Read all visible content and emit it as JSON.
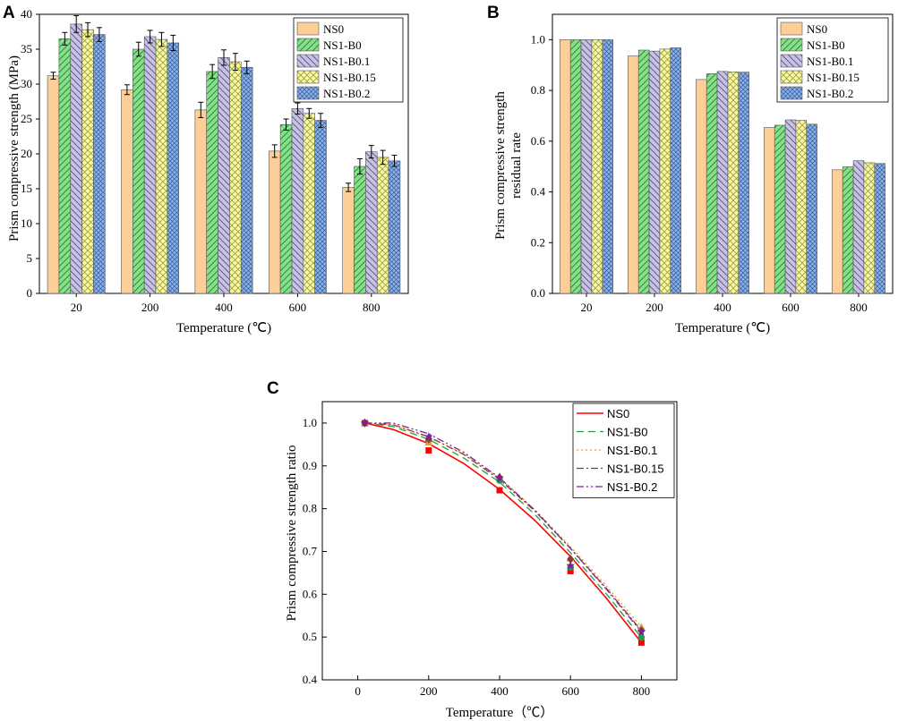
{
  "colors": {
    "NS0": "#fccf98",
    "NS1-B0": "#86e08a",
    "NS1-B0.1": "#c7c2e3",
    "NS1-B0.15": "#fbfba3",
    "NS1-B0.2": "#8fb2e6",
    "line_NS0": "#ff0000",
    "line_NS1-B0": "#1f9e4a",
    "line_NS1-B0.1": "#e3a21a",
    "line_NS1-B0.15": "#8b3a3a",
    "line_NS1-B0.2": "#7a1fa2"
  },
  "chart_data": [
    {
      "panel": "A",
      "type": "bar",
      "xlabel": "Temperature (℃)",
      "ylabel": "Prism compressive strength (MPa)",
      "ylim": [
        0,
        40
      ],
      "yticks": [
        "0",
        "5",
        "10",
        "15",
        "20",
        "25",
        "30",
        "35",
        "40"
      ],
      "categories": [
        "20",
        "200",
        "400",
        "600",
        "800"
      ],
      "legend_position": "top-right",
      "series": [
        {
          "name": "NS0",
          "values": [
            31.2,
            29.2,
            26.3,
            20.4,
            15.2
          ],
          "errors": [
            0.5,
            0.7,
            1.1,
            0.9,
            0.6
          ]
        },
        {
          "name": "NS1-B0",
          "values": [
            36.5,
            35.0,
            31.8,
            24.2,
            18.2
          ],
          "errors": [
            0.9,
            1.0,
            1.0,
            0.8,
            1.1
          ]
        },
        {
          "name": "NS1-B0.1",
          "values": [
            38.6,
            36.8,
            33.8,
            26.5,
            20.3
          ],
          "errors": [
            1.2,
            0.9,
            1.1,
            0.8,
            0.9
          ]
        },
        {
          "name": "NS1-B0.15",
          "values": [
            37.8,
            36.4,
            33.2,
            25.8,
            19.5
          ],
          "errors": [
            1.0,
            1.0,
            1.2,
            0.7,
            1.0
          ]
        },
        {
          "name": "NS1-B0.2",
          "values": [
            37.1,
            35.9,
            32.4,
            24.8,
            19.0
          ],
          "errors": [
            1.0,
            1.1,
            0.9,
            1.0,
            0.8
          ]
        }
      ]
    },
    {
      "panel": "B",
      "type": "bar",
      "xlabel": "Temperature (℃)",
      "ylabel_lines": [
        "Prism compressive strength",
        "residual rate"
      ],
      "ylim": [
        0,
        1.1
      ],
      "yticks": [
        "0.0",
        "0.2",
        "0.4",
        "0.6",
        "0.8",
        "1.0"
      ],
      "categories": [
        "20",
        "200",
        "400",
        "600",
        "800"
      ],
      "legend_position": "top-right",
      "series": [
        {
          "name": "NS0",
          "values": [
            1.0,
            0.936,
            0.843,
            0.654,
            0.487
          ]
        },
        {
          "name": "NS1-B0",
          "values": [
            1.0,
            0.959,
            0.866,
            0.663,
            0.499
          ]
        },
        {
          "name": "NS1-B0.1",
          "values": [
            1.0,
            0.955,
            0.875,
            0.684,
            0.523
          ]
        },
        {
          "name": "NS1-B0.15",
          "values": [
            1.0,
            0.963,
            0.873,
            0.682,
            0.515
          ]
        },
        {
          "name": "NS1-B0.2",
          "values": [
            1.0,
            0.968,
            0.872,
            0.667,
            0.512
          ]
        }
      ]
    },
    {
      "panel": "C",
      "type": "line",
      "xlabel": "Temperature（℃）",
      "ylabel": "Prism compressive strength ratio",
      "xlim": [
        -100,
        900
      ],
      "ylim": [
        0.4,
        1.05
      ],
      "xticks": [
        "0",
        "200",
        "400",
        "600",
        "800"
      ],
      "yticks": [
        "0.4",
        "0.5",
        "0.6",
        "0.7",
        "0.8",
        "0.9",
        "1.0"
      ],
      "legend_position": "top-right",
      "x": [
        20,
        200,
        400,
        600,
        800
      ],
      "series": [
        {
          "name": "NS0",
          "values": [
            1.0,
            0.936,
            0.843,
            0.654,
            0.487
          ],
          "fit": [
            [
              20,
              1.0
            ],
            [
              100,
              0.985
            ],
            [
              200,
              0.952
            ],
            [
              300,
              0.905
            ],
            [
              400,
              0.845
            ],
            [
              500,
              0.772
            ],
            [
              600,
              0.688
            ],
            [
              700,
              0.592
            ],
            [
              800,
              0.487
            ]
          ]
        },
        {
          "name": "NS1-B0",
          "values": [
            1.0,
            0.959,
            0.866,
            0.663,
            0.499
          ],
          "fit": [
            [
              20,
              1.0
            ],
            [
              100,
              0.992
            ],
            [
              200,
              0.962
            ],
            [
              300,
              0.918
            ],
            [
              400,
              0.862
            ],
            [
              500,
              0.786
            ],
            [
              600,
              0.697
            ],
            [
              700,
              0.602
            ],
            [
              800,
              0.499
            ]
          ]
        },
        {
          "name": "NS1-B0.1",
          "values": [
            1.0,
            0.955,
            0.875,
            0.684,
            0.523
          ],
          "fit": [
            [
              20,
              1.0
            ],
            [
              100,
              0.995
            ],
            [
              200,
              0.967
            ],
            [
              300,
              0.928
            ],
            [
              400,
              0.871
            ],
            [
              500,
              0.797
            ],
            [
              600,
              0.711
            ],
            [
              700,
              0.621
            ],
            [
              800,
              0.523
            ]
          ]
        },
        {
          "name": "NS1-B0.15",
          "values": [
            1.0,
            0.963,
            0.873,
            0.682,
            0.515
          ],
          "fit": [
            [
              20,
              1.0
            ],
            [
              100,
              0.996
            ],
            [
              200,
              0.968
            ],
            [
              300,
              0.926
            ],
            [
              400,
              0.868
            ],
            [
              500,
              0.794
            ],
            [
              600,
              0.707
            ],
            [
              700,
              0.615
            ],
            [
              800,
              0.515
            ]
          ]
        },
        {
          "name": "NS1-B0.2",
          "values": [
            1.0,
            0.968,
            0.872,
            0.667,
            0.512
          ],
          "fit": [
            [
              20,
              1.0
            ],
            [
              100,
              1.0
            ],
            [
              200,
              0.975
            ],
            [
              300,
              0.931
            ],
            [
              400,
              0.872
            ],
            [
              500,
              0.796
            ],
            [
              600,
              0.707
            ],
            [
              700,
              0.613
            ],
            [
              800,
              0.512
            ]
          ]
        }
      ]
    }
  ]
}
